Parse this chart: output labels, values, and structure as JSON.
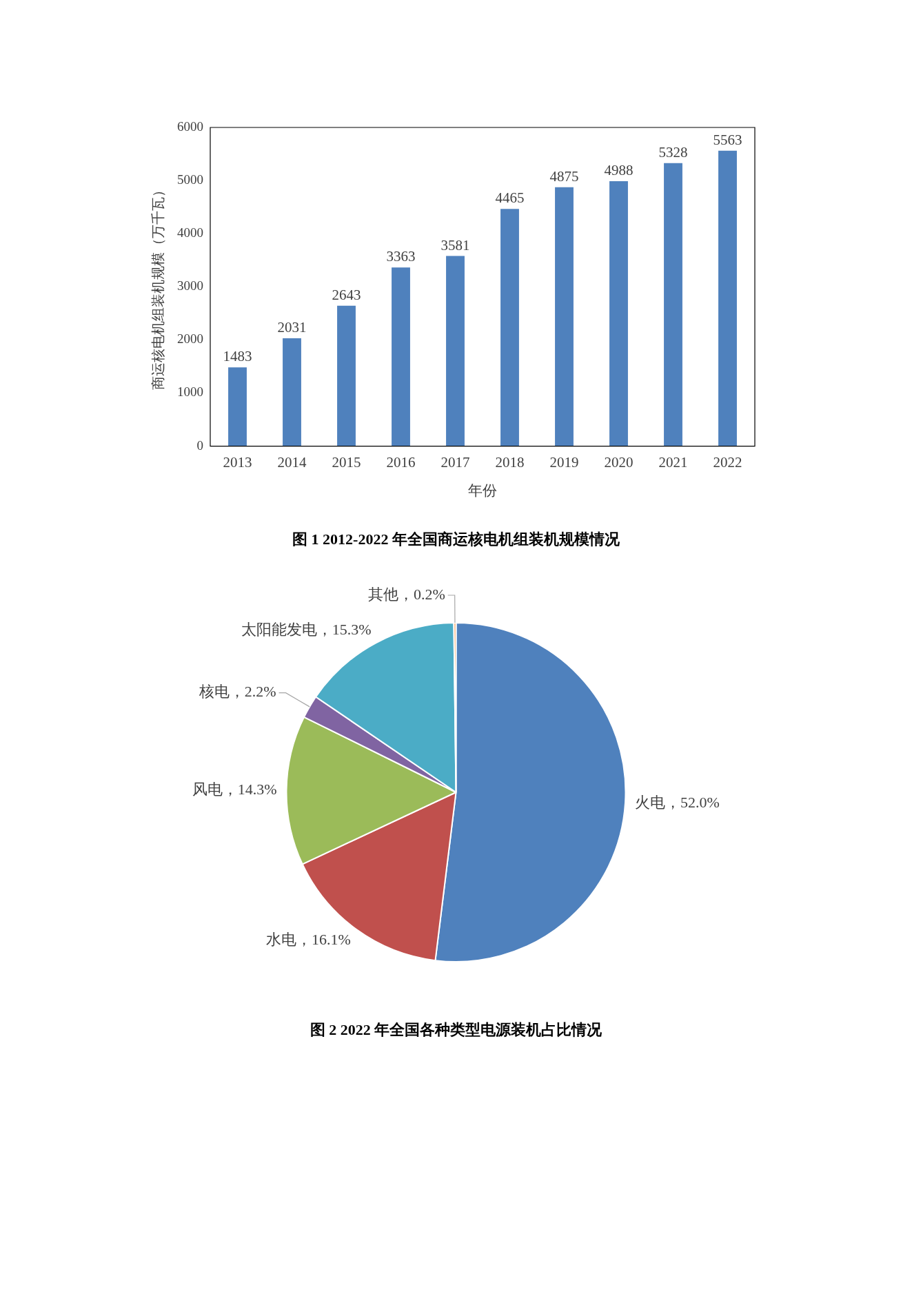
{
  "chart_data": [
    {
      "type": "bar",
      "title": "图 1 2012-2022 年全国商运核电机组装机规模情况",
      "xlabel": "年份",
      "ylabel": "商运核电机组装机规模（万千瓦）",
      "categories": [
        "2013",
        "2014",
        "2015",
        "2016",
        "2017",
        "2018",
        "2019",
        "2020",
        "2021",
        "2022"
      ],
      "values": [
        1483,
        2031,
        2643,
        3363,
        3581,
        4465,
        4875,
        4988,
        5328,
        5563
      ],
      "color": "#4f81bd",
      "ylim": [
        0,
        6000
      ],
      "yticks": [
        0,
        1000,
        2000,
        3000,
        4000,
        5000,
        6000
      ],
      "grid": false,
      "legend": false,
      "data_labels": true
    },
    {
      "type": "pie",
      "title": "图 2 2022 年全国各种类型电源装机占比情况",
      "categories": [
        "火电",
        "水电",
        "风电",
        "核电",
        "太阳能发电",
        "其他"
      ],
      "values": [
        52.0,
        16.1,
        14.3,
        2.2,
        15.3,
        0.2
      ],
      "value_labels": [
        "52.0%",
        "16.1%",
        "14.3%",
        "2.2%",
        "15.3%",
        "0.2%"
      ],
      "colors": [
        "#4f81bd",
        "#c0504d",
        "#9bbb59",
        "#8064a2",
        "#4bacc6",
        "#f79646"
      ],
      "legend": false
    }
  ]
}
